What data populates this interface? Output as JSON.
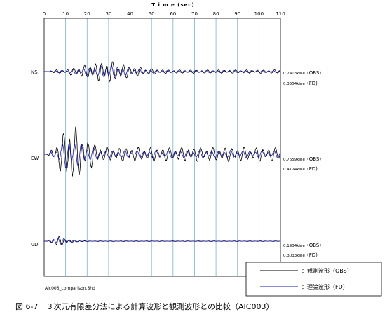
{
  "chart_data": {
    "type": "line",
    "title": "",
    "xlabel": "T i m e (sec)",
    "ylabel": "",
    "xlim": [
      0,
      110
    ],
    "x_ticks": [
      0,
      10,
      20,
      30,
      40,
      50,
      60,
      70,
      80,
      90,
      100,
      110
    ],
    "grid_x_every": 10,
    "traces": [
      {
        "component": "NS",
        "amplitude_obs": "0.2403kine",
        "amplitude_fd": "0.3554kine",
        "obs_tag": "(OBS)",
        "fd_tag": "(FD)"
      },
      {
        "component": "EW",
        "amplitude_obs": "0.7659kine",
        "amplitude_fd": "0.4124kine",
        "obs_tag": "(OBS)",
        "fd_tag": "(FD)"
      },
      {
        "component": "UD",
        "amplitude_obs": "0.1934kine",
        "amplitude_fd": "0.3033kine",
        "obs_tag": "(OBS)",
        "fd_tag": "(FD)"
      }
    ],
    "series": [
      {
        "name": "：観測波形（OBS）",
        "color": "#000000"
      },
      {
        "name": "：理論波形（FD）",
        "color": "#1a1aa6"
      }
    ],
    "legend_placement": "bottom-right",
    "filename": "Aic003_comparison.8hd"
  },
  "caption": "図 6-7　３次元有限差分法による計算波形と観測波形との比較（AIC003）",
  "colors": {
    "grid": "#7fb2c8",
    "obs": "#000000",
    "fd": "#1a1aa6"
  }
}
